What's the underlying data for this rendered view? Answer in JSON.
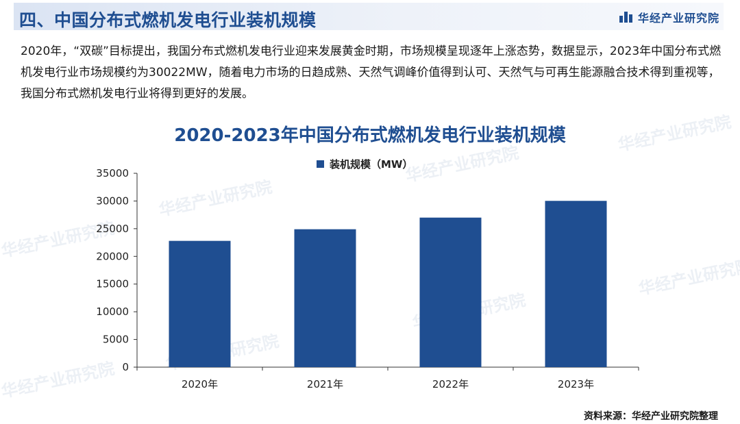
{
  "header": {
    "title": "四、中国分布式燃机发电行业装机规模",
    "brand": "华经产业研究院"
  },
  "intro": {
    "text": "2020年，“双碳”目标提出，我国分布式燃机发电行业迎来发展黄金时期，市场规模呈现逐年上涨态势，数据显示，2023年中国分布式燃机发电行业市场规模约为30022MW，随着电力市场的日趋成熟、天然气调峰价值得到认可、天然气与可再生能源融合技术得到重视等，我国分布式燃机发电行业将得到更好的发展。"
  },
  "watermark": {
    "text": "华经产业研究院"
  },
  "chart_data": {
    "type": "bar",
    "title": "2020-2023年中国分布式燃机发电行业装机规模",
    "categories": [
      "2020年",
      "2021年",
      "2022年",
      "2023年"
    ],
    "series": [
      {
        "name": "装机规模（MW）",
        "values": [
          22800,
          24900,
          27000,
          30022
        ],
        "color": "#1f4e91"
      }
    ],
    "ylim": [
      0,
      35000
    ],
    "yticks": [
      0,
      5000,
      10000,
      15000,
      20000,
      25000,
      30000,
      35000
    ],
    "grid": false,
    "legend_position": "top-center"
  },
  "source": {
    "text": "资料来源：华经产业研究院整理"
  },
  "colors": {
    "accent": "#1f4e91",
    "header_bg": "#dbe4f3"
  }
}
